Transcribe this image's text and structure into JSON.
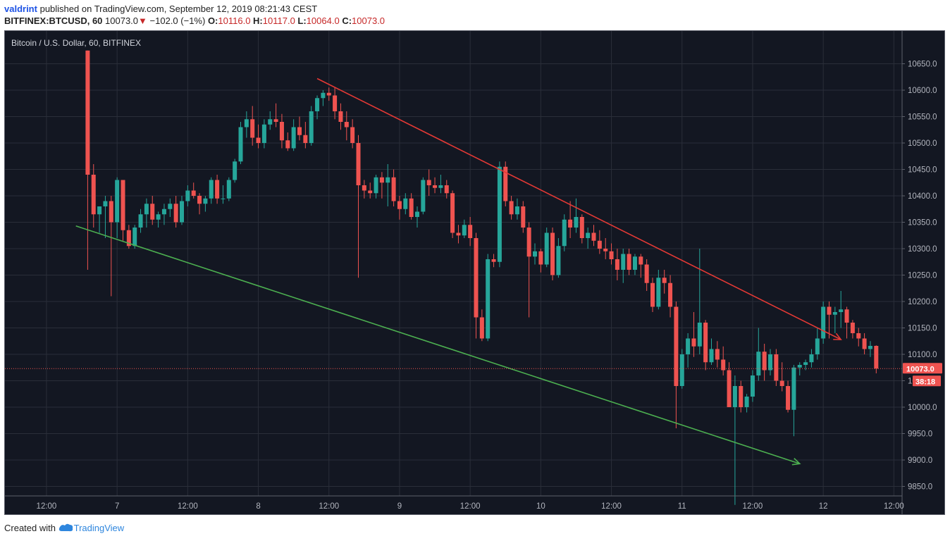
{
  "header": {
    "username": "valdrint",
    "published_text": "published on TradingView.com, September 12, 2019 08:21:43 CEST",
    "symbol": "BITFINEX:BTCUSD, 60",
    "last": "10073.0",
    "arrow": "▼",
    "change": "−102.0 (−1%)",
    "o_label": "O:",
    "o_value": "10116.0",
    "h_label": "H:",
    "h_value": "10117.0",
    "l_label": "L:",
    "l_value": "10064.0",
    "c_label": "C:",
    "c_value": "10073.0"
  },
  "chart_title": "Bitcoin / U.S. Dollar, 60, BITFINEX",
  "price_tag": "10073.0",
  "countdown": "38:18",
  "footer": {
    "created_with": "Created with",
    "brand": "TradingView"
  },
  "colors": {
    "background": "#131722",
    "up": "#26a69a",
    "down": "#ef5350",
    "resistance": "#e53935",
    "support": "#4caf50",
    "grid": "#2a2e39",
    "axis_text": "#b2b5be"
  },
  "chart_data": {
    "type": "candlestick",
    "title": "Bitcoin / U.S. Dollar, 60, BITFINEX",
    "interval": "60",
    "ylim": [
      9820,
      10675
    ],
    "y_ticks": [
      9850,
      9900,
      9950,
      10000,
      10050,
      10100,
      10150,
      10200,
      10250,
      10300,
      10350,
      10400,
      10450,
      10500,
      10550,
      10600,
      10650
    ],
    "y_tick_labels": [
      "9850.0",
      "9900.0",
      "9950.0",
      "10000.0",
      "10050.0",
      "10100.0",
      "10150.0",
      "10200.0",
      "10250.0",
      "10300.0",
      "10350.0",
      "10400.0",
      "10450.0",
      "10500.0",
      "10550.0",
      "10600.0",
      "10650.0"
    ],
    "x_ticks": [
      {
        "bar": -43,
        "label": "12:00"
      },
      {
        "bar": -31,
        "label": "7"
      },
      {
        "bar": -19,
        "label": "12:00"
      },
      {
        "bar": -7,
        "label": "8"
      },
      {
        "bar": 5,
        "label": "12:00"
      },
      {
        "bar": 17,
        "label": "9"
      },
      {
        "bar": 29,
        "label": "12:00"
      },
      {
        "bar": 41,
        "label": "10"
      },
      {
        "bar": 53,
        "label": "12:00"
      },
      {
        "bar": 65,
        "label": "11"
      },
      {
        "bar": 77,
        "label": "12:00"
      },
      {
        "bar": 89,
        "label": "12"
      },
      {
        "bar": 101,
        "label": "12:00"
      }
    ],
    "bar_interval_minutes": 60,
    "candles": [
      [
        10700,
        10700,
        10260,
        10440
      ],
      [
        10440,
        10460,
        10340,
        10365
      ],
      [
        10365,
        10380,
        10330,
        10380
      ],
      [
        10380,
        10400,
        10320,
        10390
      ],
      [
        10390,
        10400,
        10210,
        10350
      ],
      [
        10350,
        10435,
        10320,
        10430
      ],
      [
        10430,
        10430,
        10315,
        10335
      ],
      [
        10335,
        10345,
        10300,
        10305
      ],
      [
        10305,
        10345,
        10300,
        10340
      ],
      [
        10340,
        10375,
        10330,
        10365
      ],
      [
        10365,
        10395,
        10340,
        10385
      ],
      [
        10385,
        10400,
        10345,
        10355
      ],
      [
        10355,
        10370,
        10340,
        10365
      ],
      [
        10365,
        10385,
        10345,
        10375
      ],
      [
        10375,
        10395,
        10360,
        10385
      ],
      [
        10385,
        10400,
        10340,
        10350
      ],
      [
        10350,
        10400,
        10345,
        10390
      ],
      [
        10390,
        10420,
        10380,
        10410
      ],
      [
        10410,
        10425,
        10395,
        10400
      ],
      [
        10400,
        10405,
        10365,
        10385
      ],
      [
        10385,
        10400,
        10370,
        10395
      ],
      [
        10395,
        10435,
        10385,
        10430
      ],
      [
        10430,
        10440,
        10385,
        10395
      ],
      [
        10395,
        10420,
        10385,
        10395
      ],
      [
        10395,
        10435,
        10390,
        10430
      ],
      [
        10430,
        10470,
        10425,
        10465
      ],
      [
        10465,
        10540,
        10460,
        10530
      ],
      [
        10530,
        10560,
        10510,
        10545
      ],
      [
        10545,
        10570,
        10495,
        10510
      ],
      [
        10510,
        10535,
        10490,
        10500
      ],
      [
        10500,
        10545,
        10490,
        10535
      ],
      [
        10535,
        10560,
        10525,
        10545
      ],
      [
        10545,
        10575,
        10530,
        10540
      ],
      [
        10540,
        10555,
        10490,
        10505
      ],
      [
        10505,
        10520,
        10485,
        10490
      ],
      [
        10490,
        10545,
        10485,
        10530
      ],
      [
        10530,
        10550,
        10505,
        10515
      ],
      [
        10515,
        10540,
        10490,
        10500
      ],
      [
        10500,
        10570,
        10495,
        10560
      ],
      [
        10560,
        10590,
        10545,
        10585
      ],
      [
        10585,
        10600,
        10570,
        10595
      ],
      [
        10595,
        10605,
        10580,
        10590
      ],
      [
        10590,
        10605,
        10545,
        10560
      ],
      [
        10560,
        10575,
        10525,
        10540
      ],
      [
        10540,
        10560,
        10505,
        10530
      ],
      [
        10530,
        10545,
        10490,
        10500
      ],
      [
        10500,
        10515,
        10245,
        10420
      ],
      [
        10420,
        10430,
        10395,
        10410
      ],
      [
        10410,
        10425,
        10395,
        10405
      ],
      [
        10405,
        10440,
        10395,
        10435
      ],
      [
        10435,
        10445,
        10395,
        10425
      ],
      [
        10425,
        10460,
        10380,
        10435
      ],
      [
        10435,
        10450,
        10380,
        10390
      ],
      [
        10390,
        10400,
        10355,
        10375
      ],
      [
        10375,
        10405,
        10365,
        10395
      ],
      [
        10395,
        10405,
        10355,
        10360
      ],
      [
        10360,
        10380,
        10340,
        10370
      ],
      [
        10370,
        10435,
        10365,
        10430
      ],
      [
        10430,
        10450,
        10400,
        10420
      ],
      [
        10420,
        10435,
        10405,
        10415
      ],
      [
        10415,
        10440,
        10405,
        10420
      ],
      [
        10420,
        10430,
        10395,
        10405
      ],
      [
        10405,
        10410,
        10320,
        10330
      ],
      [
        10330,
        10345,
        10310,
        10325
      ],
      [
        10325,
        10355,
        10320,
        10345
      ],
      [
        10345,
        10360,
        10305,
        10320
      ],
      [
        10320,
        10330,
        10130,
        10170
      ],
      [
        10170,
        10185,
        10125,
        10130
      ],
      [
        10130,
        10290,
        10125,
        10280
      ],
      [
        10280,
        10290,
        10265,
        10275
      ],
      [
        10275,
        10465,
        10265,
        10455
      ],
      [
        10455,
        10465,
        10380,
        10390
      ],
      [
        10390,
        10400,
        10355,
        10365
      ],
      [
        10365,
        10395,
        10355,
        10380
      ],
      [
        10380,
        10390,
        10330,
        10340
      ],
      [
        10340,
        10350,
        10170,
        10285
      ],
      [
        10285,
        10310,
        10270,
        10295
      ],
      [
        10295,
        10300,
        10255,
        10270
      ],
      [
        10270,
        10340,
        10265,
        10330
      ],
      [
        10330,
        10340,
        10240,
        10250
      ],
      [
        10250,
        10320,
        10245,
        10305
      ],
      [
        10305,
        10365,
        10295,
        10355
      ],
      [
        10355,
        10390,
        10320,
        10340
      ],
      [
        10340,
        10395,
        10330,
        10360
      ],
      [
        10360,
        10365,
        10310,
        10320
      ],
      [
        10320,
        10340,
        10300,
        10330
      ],
      [
        10330,
        10345,
        10305,
        10315
      ],
      [
        10315,
        10335,
        10290,
        10300
      ],
      [
        10300,
        10320,
        10280,
        10295
      ],
      [
        10295,
        10310,
        10270,
        10280
      ],
      [
        10280,
        10300,
        10240,
        10260
      ],
      [
        10260,
        10300,
        10235,
        10290
      ],
      [
        10290,
        10300,
        10250,
        10260
      ],
      [
        10260,
        10290,
        10250,
        10285
      ],
      [
        10285,
        10290,
        10245,
        10270
      ],
      [
        10270,
        10280,
        10220,
        10235
      ],
      [
        10235,
        10245,
        10180,
        10190
      ],
      [
        10190,
        10260,
        10185,
        10245
      ],
      [
        10245,
        10260,
        10215,
        10235
      ],
      [
        10235,
        10250,
        10170,
        10190
      ],
      [
        10190,
        10200,
        9960,
        10040
      ],
      [
        10040,
        10110,
        10035,
        10100
      ],
      [
        10100,
        10140,
        10075,
        10130
      ],
      [
        10130,
        10180,
        10095,
        10115
      ],
      [
        10115,
        10300,
        10100,
        10160
      ],
      [
        10160,
        10165,
        10070,
        10085
      ],
      [
        10085,
        10130,
        10080,
        10110
      ],
      [
        10110,
        10125,
        10075,
        10090
      ],
      [
        10090,
        10115,
        10060,
        10070
      ],
      [
        10070,
        10085,
        10005,
        10000
      ],
      [
        10000,
        10060,
        9815,
        10040
      ],
      [
        10040,
        10050,
        9990,
        10000
      ],
      [
        10000,
        10025,
        9990,
        10020
      ],
      [
        10020,
        10070,
        10010,
        10060
      ],
      [
        10060,
        10150,
        10050,
        10105
      ],
      [
        10105,
        10120,
        10050,
        10070
      ],
      [
        10070,
        10110,
        10060,
        10100
      ],
      [
        10100,
        10110,
        10040,
        10050
      ],
      [
        10050,
        10085,
        10030,
        10040
      ],
      [
        10040,
        10050,
        9990,
        9995
      ],
      [
        9995,
        10080,
        9945,
        10075
      ],
      [
        10075,
        10085,
        10060,
        10080
      ],
      [
        10080,
        10090,
        10070,
        10085
      ],
      [
        10085,
        10110,
        10075,
        10100
      ],
      [
        10100,
        10150,
        10090,
        10130
      ],
      [
        10130,
        10200,
        10120,
        10190
      ],
      [
        10190,
        10200,
        10130,
        10175
      ],
      [
        10175,
        10190,
        10140,
        10180
      ],
      [
        10180,
        10220,
        10150,
        10185
      ],
      [
        10185,
        10190,
        10130,
        10160
      ],
      [
        10160,
        10165,
        10130,
        10140
      ],
      [
        10140,
        10150,
        10115,
        10130
      ],
      [
        10130,
        10140,
        10100,
        10110
      ],
      [
        10110,
        10125,
        10095,
        10116
      ],
      [
        10116,
        10117,
        10064,
        10073
      ]
    ],
    "first_bar_index": -36,
    "trendlines": [
      {
        "name": "resistance",
        "color": "#e53935",
        "from_bar": 3,
        "from_price": 10622,
        "to_bar": 92,
        "to_price": 10128,
        "arrow": true
      },
      {
        "name": "support",
        "color": "#4caf50",
        "from_bar": -38,
        "from_price": 10343,
        "to_bar": 85,
        "to_price": 9893,
        "arrow": true
      }
    ],
    "last_price": 10073.0
  }
}
